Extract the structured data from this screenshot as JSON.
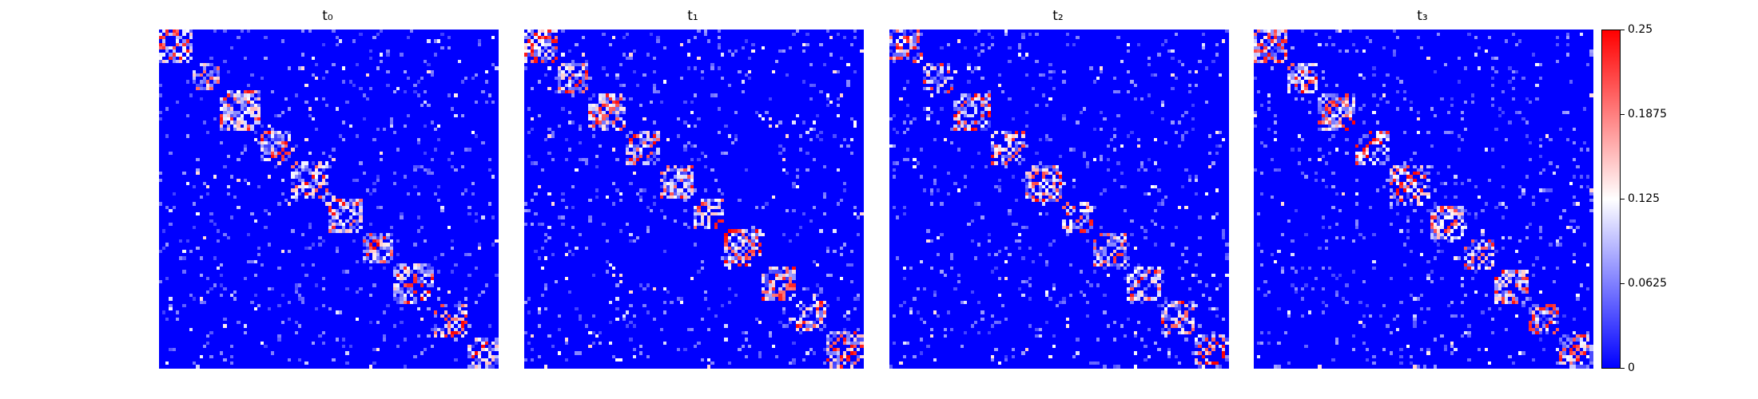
{
  "chart_data": {
    "type": "heatmap",
    "panels": [
      {
        "title": "t₀",
        "block_sizes": [
          10,
          8,
          12,
          9,
          11,
          10,
          9,
          12,
          10,
          9
        ],
        "seed": 11
      },
      {
        "title": "t₁",
        "block_sizes": [
          10,
          9,
          11,
          10,
          10,
          9,
          11,
          10,
          9,
          11
        ],
        "seed": 23
      },
      {
        "title": "t₂",
        "block_sizes": [
          10,
          9,
          11,
          10,
          11,
          9,
          10,
          10,
          10,
          10
        ],
        "seed": 37
      },
      {
        "title": "t₃",
        "block_sizes": [
          10,
          9,
          11,
          10,
          12,
          10,
          9,
          10,
          9,
          10
        ],
        "seed": 53
      }
    ],
    "matrix_size": 100,
    "value_range": [
      0,
      0.25
    ],
    "colormap": [
      "#0000ff",
      "#ffffff",
      "#ff0000"
    ],
    "colorbar": {
      "ticks": [
        0,
        0.0625,
        0.125,
        0.1875,
        0.25
      ],
      "tick_labels": [
        "0",
        "0.0625",
        "0.125",
        "0.1875",
        "0.25"
      ],
      "position": "right"
    }
  }
}
